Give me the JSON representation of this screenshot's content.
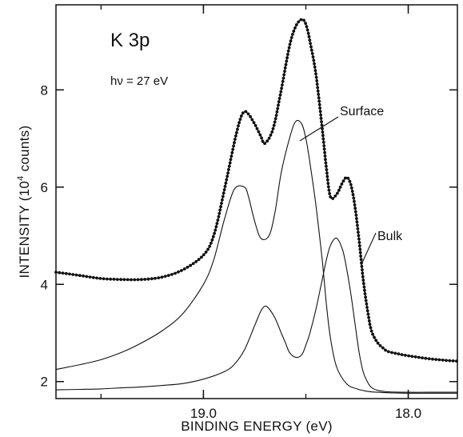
{
  "chart_data": {
    "type": "line",
    "title": "K 3p",
    "subtitle": "hν = 27 eV",
    "xlabel": "BINDING ENERGY (eV)",
    "ylabel_parts": [
      "INTENSITY (10",
      "4",
      " counts)"
    ],
    "xlim": [
      19.72,
      17.76
    ],
    "ylim": [
      1.65,
      9.75
    ],
    "x_reversed": true,
    "x_ticks": [
      19.0,
      18.0
    ],
    "x_tick_labels": [
      "19.0",
      "18.0"
    ],
    "x_minor_ticks": [
      19.5,
      19.0,
      18.5,
      18.0
    ],
    "y_ticks": [
      2,
      4,
      6,
      8
    ],
    "y_tick_labels": [
      "2",
      "4",
      "6",
      "8"
    ],
    "grid": false,
    "annotations": [
      {
        "text": "Surface",
        "points_to": {
          "x": 18.53,
          "y": 6.95
        }
      },
      {
        "text": "Bulk",
        "points_to": {
          "x": 18.23,
          "y": 4.4
        }
      }
    ],
    "series": [
      {
        "style": "dotted-data",
        "x": [
          19.72,
          19.6,
          19.5,
          19.4,
          19.3,
          19.2,
          19.1,
          19.0,
          18.95,
          18.9,
          18.85,
          18.82,
          18.8,
          18.78,
          18.75,
          18.72,
          18.7,
          18.66,
          18.62,
          18.58,
          18.55,
          18.52,
          18.5,
          18.48,
          18.45,
          18.42,
          18.4,
          18.38,
          18.35,
          18.32,
          18.3,
          18.28,
          18.26,
          18.24,
          18.22,
          18.2,
          18.18,
          18.15,
          18.12,
          18.1,
          18.05,
          18.0,
          17.95,
          17.9,
          17.85,
          17.8,
          17.76
        ],
        "y": [
          4.25,
          4.18,
          4.12,
          4.1,
          4.1,
          4.15,
          4.3,
          4.6,
          5.0,
          5.9,
          6.9,
          7.4,
          7.55,
          7.5,
          7.3,
          7.05,
          6.9,
          7.2,
          8.0,
          8.9,
          9.3,
          9.45,
          9.35,
          9.0,
          8.3,
          7.2,
          6.4,
          5.8,
          5.85,
          6.1,
          6.2,
          6.05,
          5.6,
          4.9,
          4.1,
          3.5,
          3.05,
          2.8,
          2.68,
          2.62,
          2.57,
          2.53,
          2.5,
          2.47,
          2.45,
          2.43,
          2.42
        ]
      },
      {
        "style": "fitted-surface",
        "x": [
          19.72,
          19.6,
          19.5,
          19.4,
          19.3,
          19.2,
          19.1,
          19.0,
          18.95,
          18.9,
          18.85,
          18.8,
          18.78,
          18.75,
          18.72,
          18.68,
          18.65,
          18.62,
          18.58,
          18.55,
          18.52,
          18.5,
          18.48,
          18.45,
          18.42,
          18.4,
          18.38,
          18.35,
          18.3,
          18.25,
          18.2,
          18.15,
          18.1,
          18.0,
          17.9,
          17.76
        ],
        "y": [
          2.25,
          2.35,
          2.45,
          2.6,
          2.8,
          3.05,
          3.4,
          4.0,
          4.5,
          5.3,
          5.95,
          6.0,
          5.8,
          5.3,
          4.95,
          5.0,
          5.5,
          6.3,
          7.0,
          7.35,
          7.3,
          7.0,
          6.5,
          5.6,
          4.5,
          3.6,
          2.9,
          2.3,
          1.95,
          1.85,
          1.8,
          1.78,
          1.77,
          1.76,
          1.76,
          1.76
        ]
      },
      {
        "style": "fitted-bulk",
        "x": [
          19.72,
          19.6,
          19.5,
          19.4,
          19.3,
          19.2,
          19.1,
          19.0,
          18.9,
          18.85,
          18.8,
          18.75,
          18.72,
          18.7,
          18.68,
          18.65,
          18.62,
          18.6,
          18.58,
          18.55,
          18.52,
          18.5,
          18.48,
          18.45,
          18.42,
          18.4,
          18.38,
          18.35,
          18.32,
          18.3,
          18.28,
          18.26,
          18.24,
          18.22,
          18.2,
          18.18,
          18.15,
          18.12,
          18.1,
          18.0,
          17.9,
          17.76
        ],
        "y": [
          1.83,
          1.84,
          1.85,
          1.87,
          1.89,
          1.92,
          1.96,
          2.05,
          2.2,
          2.35,
          2.65,
          3.15,
          3.45,
          3.55,
          3.5,
          3.3,
          3.0,
          2.8,
          2.6,
          2.5,
          2.55,
          2.75,
          3.0,
          3.5,
          4.1,
          4.5,
          4.8,
          4.95,
          4.7,
          4.3,
          3.8,
          3.2,
          2.6,
          2.2,
          2.0,
          1.88,
          1.82,
          1.8,
          1.79,
          1.78,
          1.78,
          1.78
        ]
      }
    ]
  }
}
